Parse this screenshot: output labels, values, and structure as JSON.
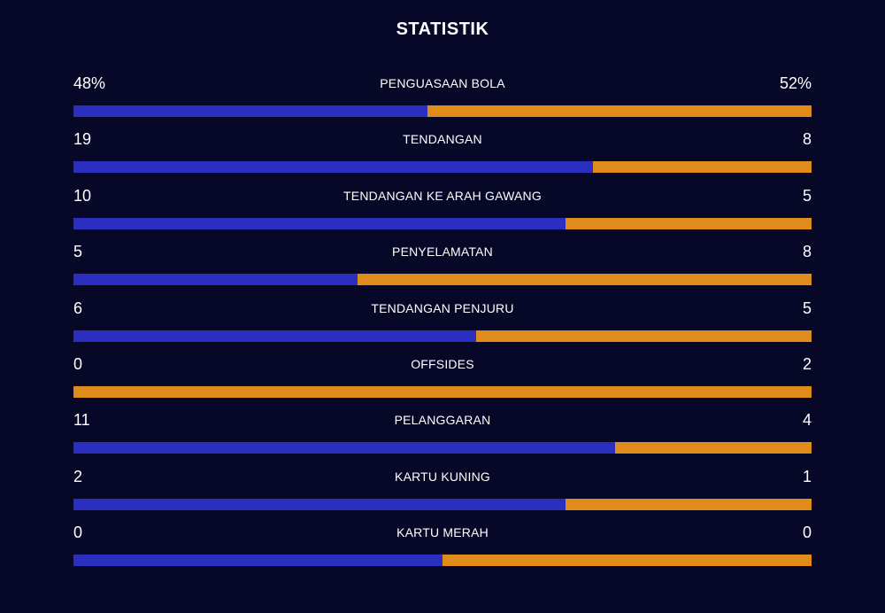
{
  "title": "STATISTIK",
  "colors": {
    "background": "#070828",
    "home": "#2a2fbf",
    "away": "#e08c1a"
  },
  "stats": [
    {
      "label": "PENGUASAAN BOLA",
      "home_display": "48%",
      "away_display": "52%",
      "home": 48,
      "away": 52
    },
    {
      "label": "TENDANGAN",
      "home_display": "19",
      "away_display": "8",
      "home": 19,
      "away": 8
    },
    {
      "label": "TENDANGAN KE ARAH GAWANG",
      "home_display": "10",
      "away_display": "5",
      "home": 10,
      "away": 5
    },
    {
      "label": "PENYELAMATAN",
      "home_display": "5",
      "away_display": "8",
      "home": 5,
      "away": 8
    },
    {
      "label": "TENDANGAN PENJURU",
      "home_display": "6",
      "away_display": "5",
      "home": 6,
      "away": 5
    },
    {
      "label": "OFFSIDES",
      "home_display": "0",
      "away_display": "2",
      "home": 0,
      "away": 2
    },
    {
      "label": "PELANGGARAN",
      "home_display": "11",
      "away_display": "4",
      "home": 11,
      "away": 4
    },
    {
      "label": "KARTU KUNING",
      "home_display": "2",
      "away_display": "1",
      "home": 2,
      "away": 1
    },
    {
      "label": "KARTU MERAH",
      "home_display": "0",
      "away_display": "0",
      "home": 0,
      "away": 0
    }
  ]
}
